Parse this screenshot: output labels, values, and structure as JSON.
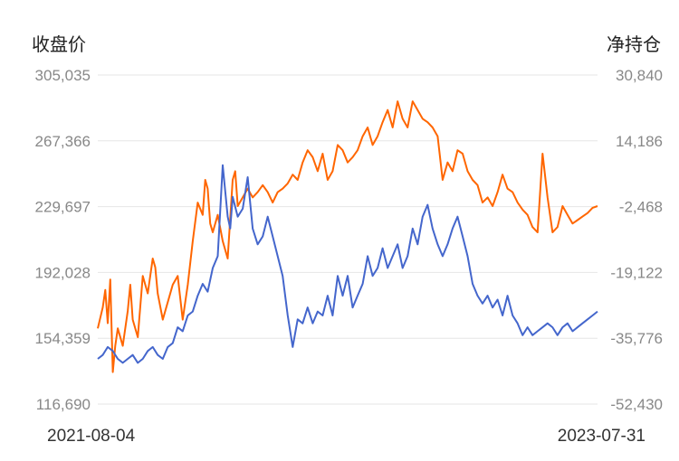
{
  "chart_data": {
    "type": "line",
    "left_axis_title": "收盘价",
    "right_axis_title": "净持仓",
    "left_ticks": [
      "305,035",
      "267,366",
      "229,697",
      "192,028",
      "154,359",
      "116,690"
    ],
    "right_ticks": [
      "30,840",
      "14,186",
      "-2,468",
      "-19,122",
      "-35,776",
      "-52,430"
    ],
    "x_tick_labels": [
      "2021-08-04",
      "2023-07-31"
    ],
    "x_range": [
      "2021-08-04",
      "2023-07-31"
    ],
    "ylim_left": [
      116690,
      305035
    ],
    "ylim_right": [
      -52430,
      30840
    ],
    "grid": true,
    "colors": {
      "close_price": "#ff6600",
      "net_position": "#4466cc"
    },
    "series": [
      {
        "axis": "left",
        "color": "#ff6600",
        "x": [
          0,
          0.01,
          0.015,
          0.02,
          0.025,
          0.03,
          0.035,
          0.04,
          0.05,
          0.06,
          0.065,
          0.07,
          0.08,
          0.09,
          0.1,
          0.11,
          0.115,
          0.12,
          0.13,
          0.14,
          0.15,
          0.16,
          0.17,
          0.18,
          0.19,
          0.2,
          0.21,
          0.215,
          0.22,
          0.225,
          0.23,
          0.24,
          0.25,
          0.26,
          0.27,
          0.275,
          0.28,
          0.29,
          0.3,
          0.31,
          0.32,
          0.33,
          0.34,
          0.35,
          0.36,
          0.37,
          0.38,
          0.39,
          0.4,
          0.41,
          0.42,
          0.43,
          0.44,
          0.45,
          0.46,
          0.47,
          0.48,
          0.49,
          0.5,
          0.51,
          0.52,
          0.53,
          0.54,
          0.55,
          0.56,
          0.57,
          0.58,
          0.59,
          0.6,
          0.61,
          0.62,
          0.63,
          0.64,
          0.65,
          0.66,
          0.67,
          0.68,
          0.69,
          0.7,
          0.71,
          0.72,
          0.73,
          0.74,
          0.75,
          0.76,
          0.77,
          0.78,
          0.79,
          0.8,
          0.81,
          0.82,
          0.83,
          0.84,
          0.85,
          0.86,
          0.87,
          0.88,
          0.89,
          0.9,
          0.91,
          0.92,
          0.93,
          0.94,
          0.95,
          0.96,
          0.97,
          0.98,
          0.99,
          1
        ],
        "y": [
          160000,
          172000,
          182000,
          163000,
          188000,
          135000,
          150000,
          160000,
          150000,
          170000,
          185000,
          165000,
          155000,
          190000,
          180000,
          200000,
          195000,
          180000,
          165000,
          175000,
          185000,
          190000,
          165000,
          185000,
          210000,
          232000,
          225000,
          245000,
          240000,
          220000,
          215000,
          225000,
          210000,
          200000,
          245000,
          250000,
          230000,
          235000,
          240000,
          235000,
          238000,
          242000,
          238000,
          232000,
          238000,
          240000,
          243000,
          248000,
          245000,
          255000,
          262000,
          258000,
          250000,
          260000,
          245000,
          250000,
          265000,
          262000,
          255000,
          258000,
          262000,
          270000,
          275000,
          265000,
          270000,
          278000,
          285000,
          275000,
          290000,
          280000,
          275000,
          290000,
          285000,
          280000,
          278000,
          275000,
          270000,
          245000,
          255000,
          250000,
          262000,
          260000,
          250000,
          245000,
          242000,
          232000,
          235000,
          230000,
          238000,
          248000,
          240000,
          238000,
          232000,
          228000,
          225000,
          218000,
          215000,
          260000,
          235000,
          215000,
          218000,
          230000,
          225000,
          220000,
          222000,
          224000,
          226000,
          229000,
          230000
        ]
      },
      {
        "axis": "right",
        "color": "#4466cc",
        "x": [
          0,
          0.01,
          0.02,
          0.03,
          0.04,
          0.05,
          0.06,
          0.07,
          0.08,
          0.09,
          0.1,
          0.11,
          0.12,
          0.13,
          0.14,
          0.15,
          0.16,
          0.17,
          0.18,
          0.19,
          0.2,
          0.21,
          0.22,
          0.23,
          0.24,
          0.25,
          0.26,
          0.265,
          0.27,
          0.28,
          0.29,
          0.3,
          0.31,
          0.32,
          0.33,
          0.34,
          0.35,
          0.36,
          0.37,
          0.38,
          0.39,
          0.4,
          0.41,
          0.42,
          0.43,
          0.44,
          0.45,
          0.46,
          0.47,
          0.48,
          0.49,
          0.5,
          0.51,
          0.52,
          0.53,
          0.54,
          0.55,
          0.56,
          0.57,
          0.58,
          0.59,
          0.6,
          0.61,
          0.62,
          0.63,
          0.64,
          0.65,
          0.66,
          0.67,
          0.68,
          0.69,
          0.7,
          0.71,
          0.72,
          0.73,
          0.74,
          0.75,
          0.76,
          0.77,
          0.78,
          0.79,
          0.8,
          0.81,
          0.82,
          0.83,
          0.84,
          0.85,
          0.86,
          0.87,
          0.88,
          0.89,
          0.9,
          0.91,
          0.92,
          0.93,
          0.94,
          0.95,
          0.96,
          0.97,
          0.98,
          0.99,
          1
        ],
        "y": [
          -41000,
          -40000,
          -38000,
          -39000,
          -41000,
          -42000,
          -41000,
          -40000,
          -42000,
          -41000,
          -39000,
          -38000,
          -40000,
          -41000,
          -38000,
          -37000,
          -33000,
          -34000,
          -30000,
          -29000,
          -25000,
          -22000,
          -24000,
          -18000,
          -15000,
          8000,
          -5000,
          -8000,
          0,
          -5000,
          -3000,
          5000,
          -8000,
          -12000,
          -10000,
          -5000,
          -10000,
          -15000,
          -20000,
          -30000,
          -38000,
          -31000,
          -32000,
          -28000,
          -32000,
          -29000,
          -30000,
          -25000,
          -30000,
          -20000,
          -25000,
          -20000,
          -28000,
          -25000,
          -22000,
          -15000,
          -20000,
          -18000,
          -13000,
          -18000,
          -15000,
          -12000,
          -18000,
          -15000,
          -8000,
          -12000,
          -5000,
          -2000,
          -8000,
          -12000,
          -15000,
          -12000,
          -8000,
          -5000,
          -10000,
          -15000,
          -22000,
          -25000,
          -27000,
          -25000,
          -28000,
          -26000,
          -30000,
          -25000,
          -30000,
          -32000,
          -35000,
          -33000,
          -35000,
          -34000,
          -33000,
          -32000,
          -33000,
          -35000,
          -33000,
          -32000,
          -34000,
          -33000,
          -32000,
          -31000,
          -30000,
          -29000
        ]
      }
    ]
  }
}
